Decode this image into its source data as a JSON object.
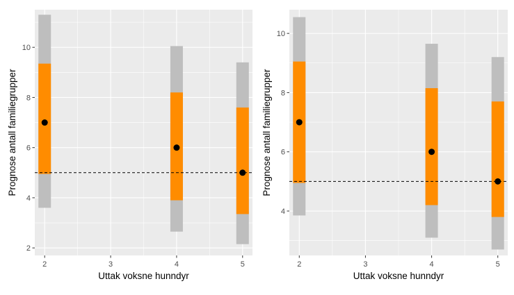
{
  "chart_data": [
    {
      "type": "error_bars",
      "title": "",
      "xlabel": "Uttak voksne hunndyr",
      "ylabel": "Prognose antall familiegrupper",
      "xlim": [
        1.85,
        5.15
      ],
      "ylim": [
        1.7,
        11.5
      ],
      "xticks": [
        2,
        3,
        4,
        5
      ],
      "yticks": [
        2,
        4,
        6,
        8,
        10
      ],
      "reference_line": 5,
      "points": [
        {
          "x": 2,
          "y": 7,
          "inner": [
            4.95,
            9.35
          ],
          "outer": [
            3.6,
            11.3
          ]
        },
        {
          "x": 4,
          "y": 6,
          "inner": [
            3.9,
            8.2
          ],
          "outer": [
            2.65,
            10.05
          ]
        },
        {
          "x": 5,
          "y": 5,
          "inner": [
            3.35,
            7.6
          ],
          "outer": [
            2.15,
            9.4
          ]
        }
      ],
      "colors": {
        "outer": "#bebebe",
        "inner": "#ff8c00",
        "point": "#000000",
        "panel": "#ebebeb"
      }
    },
    {
      "type": "error_bars",
      "title": "",
      "xlabel": "Uttak voksne hunndyr",
      "ylabel": "Prognose antall familiegrupper",
      "xlim": [
        1.85,
        5.15
      ],
      "ylim": [
        2.5,
        10.8
      ],
      "xticks": [
        2,
        3,
        4,
        5
      ],
      "yticks": [
        4,
        6,
        8,
        10
      ],
      "reference_line": 5,
      "points": [
        {
          "x": 2,
          "y": 7,
          "inner": [
            4.95,
            9.05
          ],
          "outer": [
            3.85,
            10.55
          ]
        },
        {
          "x": 4,
          "y": 6,
          "inner": [
            4.2,
            8.15
          ],
          "outer": [
            3.1,
            9.65
          ]
        },
        {
          "x": 5,
          "y": 5,
          "inner": [
            3.8,
            7.7
          ],
          "outer": [
            2.7,
            9.2
          ]
        }
      ],
      "colors": {
        "outer": "#bebebe",
        "inner": "#ff8c00",
        "point": "#000000",
        "panel": "#ebebeb"
      }
    }
  ]
}
